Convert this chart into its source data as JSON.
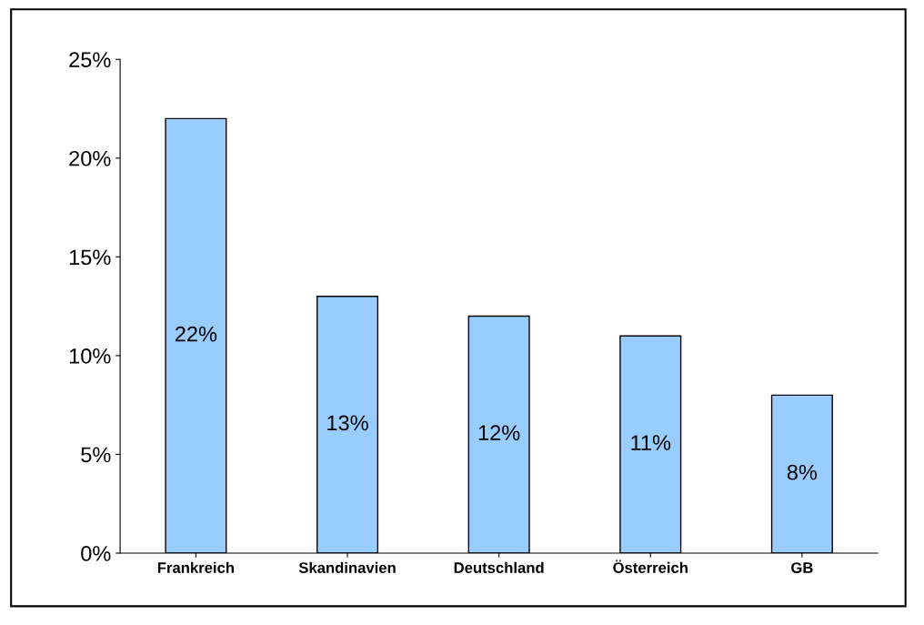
{
  "chart_data": {
    "type": "bar",
    "categories": [
      "Frankreich",
      "Skandinavien",
      "Deutschland",
      "Österreich",
      "GB"
    ],
    "values": [
      22,
      13,
      12,
      11,
      8
    ],
    "color": "#99ccff",
    "ylim": [
      0,
      25
    ],
    "yticks": [
      {
        "value": 0,
        "label": "0%"
      },
      {
        "value": 5,
        "label": "5%"
      },
      {
        "value": 10,
        "label": "10%"
      },
      {
        "value": 15,
        "label": "15%"
      },
      {
        "value": 20,
        "label": "20%"
      },
      {
        "value": 25,
        "label": "25%"
      }
    ],
    "value_labels": [
      "22%",
      "13%",
      "12%",
      "11%",
      "8%"
    ],
    "grid": false
  }
}
